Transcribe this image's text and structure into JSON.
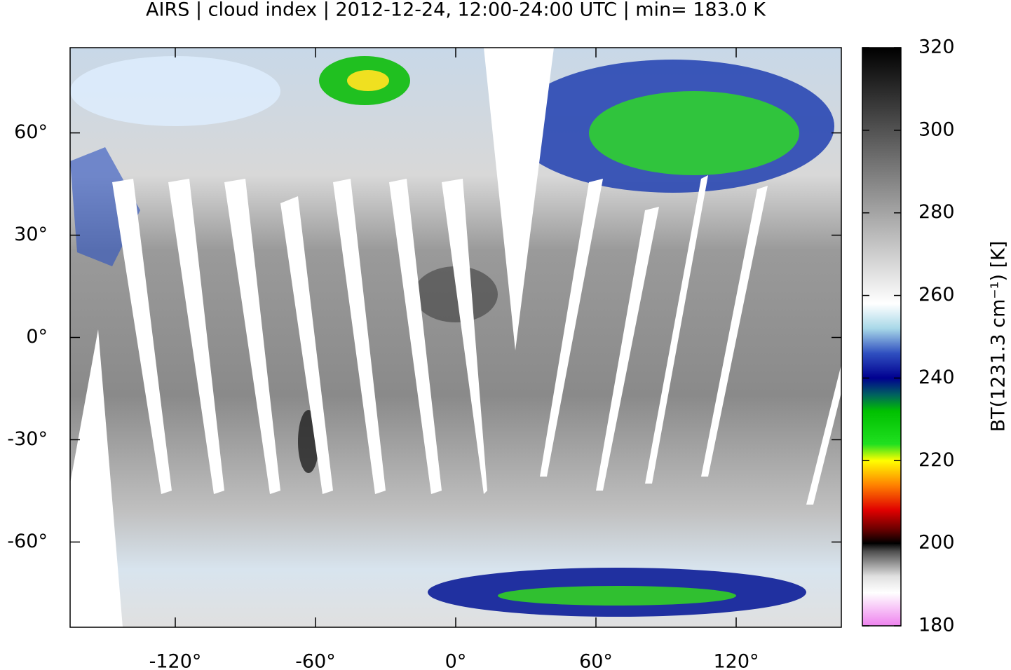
{
  "chart_data": {
    "type": "heatmap",
    "title": "AIRS | cloud index | 2012-12-24, 12:00-24:00 UTC | min= 183.0 K",
    "xlim": [
      -165,
      165
    ],
    "ylim": [
      -85,
      85
    ],
    "xticks": [
      {
        "value": -120,
        "label": "-120°"
      },
      {
        "value": -60,
        "label": "-60°"
      },
      {
        "value": 0,
        "label": "0°"
      },
      {
        "value": 60,
        "label": "60°"
      },
      {
        "value": 120,
        "label": "120°"
      }
    ],
    "yticks": [
      {
        "value": 60,
        "label": "60°"
      },
      {
        "value": 30,
        "label": "30°"
      },
      {
        "value": 0,
        "label": "0°"
      },
      {
        "value": -30,
        "label": "-30°"
      },
      {
        "value": -60,
        "label": "-60°"
      }
    ],
    "colorbar": {
      "label": "BT(1231.3 cm⁻¹) [K]",
      "lim": [
        180,
        320
      ],
      "ticks": [
        180,
        200,
        220,
        240,
        260,
        280,
        300,
        320
      ],
      "colormap": [
        [
          180,
          "#ee82ee"
        ],
        [
          188,
          "#ffffff"
        ],
        [
          192,
          "#e0e0e0"
        ],
        [
          198,
          "#505050"
        ],
        [
          200,
          "#000000"
        ],
        [
          203,
          "#600000"
        ],
        [
          208,
          "#e00000"
        ],
        [
          214,
          "#ff8000"
        ],
        [
          220,
          "#ffff00"
        ],
        [
          224,
          "#20e020"
        ],
        [
          232,
          "#00c000"
        ],
        [
          236,
          "#006060"
        ],
        [
          240,
          "#000090"
        ],
        [
          246,
          "#3050c0"
        ],
        [
          252,
          "#a8d8e8"
        ],
        [
          258,
          "#ffffff"
        ],
        [
          320,
          "#000000"
        ]
      ]
    }
  }
}
